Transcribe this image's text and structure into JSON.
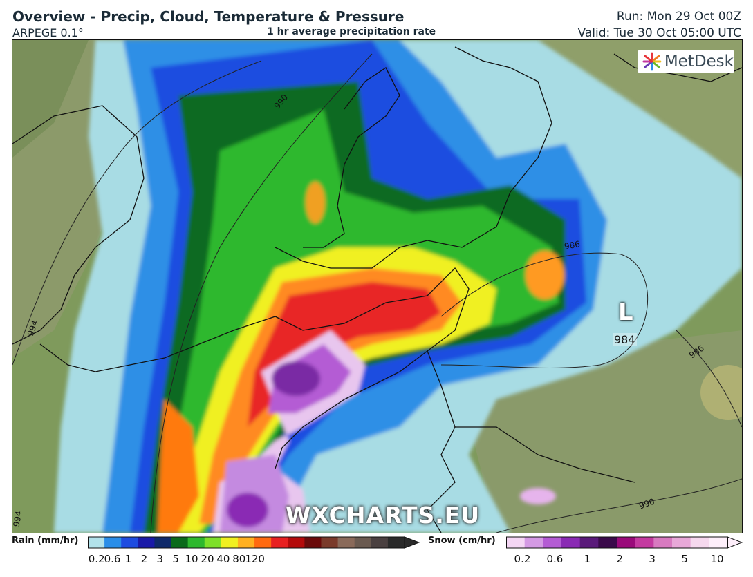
{
  "header": {
    "title": "Overview - Precip, Cloud, Temperature & Pressure",
    "model": "ARPEGE 0.1°",
    "subtitle": "1 hr average precipitation rate",
    "run": "Run: Mon 29 Oct 00Z",
    "valid": "Valid: Tue 30 Oct 05:00 UTC"
  },
  "map": {
    "brand": "MetDesk",
    "watermark": "WXCHARTS.EU",
    "low_center": {
      "symbol": "L",
      "pressure": "984"
    },
    "isobar_labels": [
      "990",
      "986",
      "994",
      "986",
      "990",
      "994"
    ]
  },
  "rain_legend": {
    "label": "Rain (mm/hr)",
    "ticks": [
      "0.2",
      "0.6",
      "1",
      "2",
      "3",
      "5",
      "10",
      "20",
      "40",
      "80",
      "120"
    ],
    "colors": [
      "#b2e2ea",
      "#2a8ee8",
      "#1e4ce0",
      "#1a1aa8",
      "#0f2a6a",
      "#0a6a1a",
      "#2eb82e",
      "#7ee02a",
      "#f0f020",
      "#ffb020",
      "#ff6a10",
      "#e82020",
      "#b40a0a",
      "#6a0a0a",
      "#7a3a2a",
      "#8a6a5a",
      "#6a5a50",
      "#4a4040",
      "#2a2a2a"
    ]
  },
  "snow_legend": {
    "label": "Snow (cm/hr)",
    "ticks": [
      "0.2",
      "0.6",
      "1",
      "2",
      "3",
      "5",
      "10"
    ],
    "colors": [
      "#f4d6f4",
      "#d49ae4",
      "#b45cd4",
      "#8a2ab4",
      "#5a1a7a",
      "#3a0a4a",
      "#9a0a7a",
      "#c43aa0",
      "#d87ac0",
      "#e8a8d8",
      "#f6d8ee",
      "#fdeefa"
    ]
  }
}
